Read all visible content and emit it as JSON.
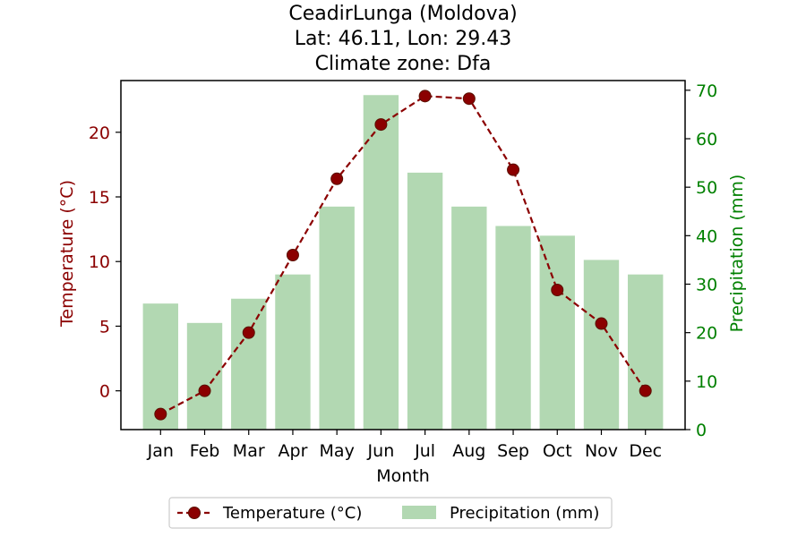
{
  "chart_data": {
    "type": "bar",
    "title_lines": [
      "CeadirLunga (Moldova)",
      "Lat: 46.11, Lon: 29.43",
      "Climate zone: Dfa"
    ],
    "xlabel": "Month",
    "ylabel_left": "Temperature (°C)",
    "ylabel_right": "Precipitation (mm)",
    "categories": [
      "Jan",
      "Feb",
      "Mar",
      "Apr",
      "May",
      "Jun",
      "Jul",
      "Aug",
      "Sep",
      "Oct",
      "Nov",
      "Dec"
    ],
    "series": [
      {
        "name": "Temperature (°C)",
        "type": "line",
        "axis": "left",
        "color": "#8b0000",
        "values": [
          -1.8,
          0.0,
          4.5,
          10.5,
          16.4,
          20.6,
          22.8,
          22.6,
          17.1,
          7.8,
          5.2,
          0.0
        ]
      },
      {
        "name": "Precipitation (mm)",
        "type": "bar",
        "axis": "right",
        "color": "#b2d8b2",
        "values": [
          26,
          22,
          27,
          32,
          46,
          69,
          53,
          46,
          42,
          40,
          35,
          32
        ]
      }
    ],
    "ylim_left": [
      -3,
      24
    ],
    "yticks_left": [
      0,
      5,
      10,
      15,
      20
    ],
    "ylim_right": [
      0,
      72
    ],
    "yticks_right": [
      0,
      10,
      20,
      30,
      40,
      50,
      60,
      70
    ],
    "left_axis_color": "#8b0000",
    "right_axis_color": "#008000",
    "marker_color": "#5a0f00",
    "grid": false,
    "legend_position": "bottom-center"
  }
}
